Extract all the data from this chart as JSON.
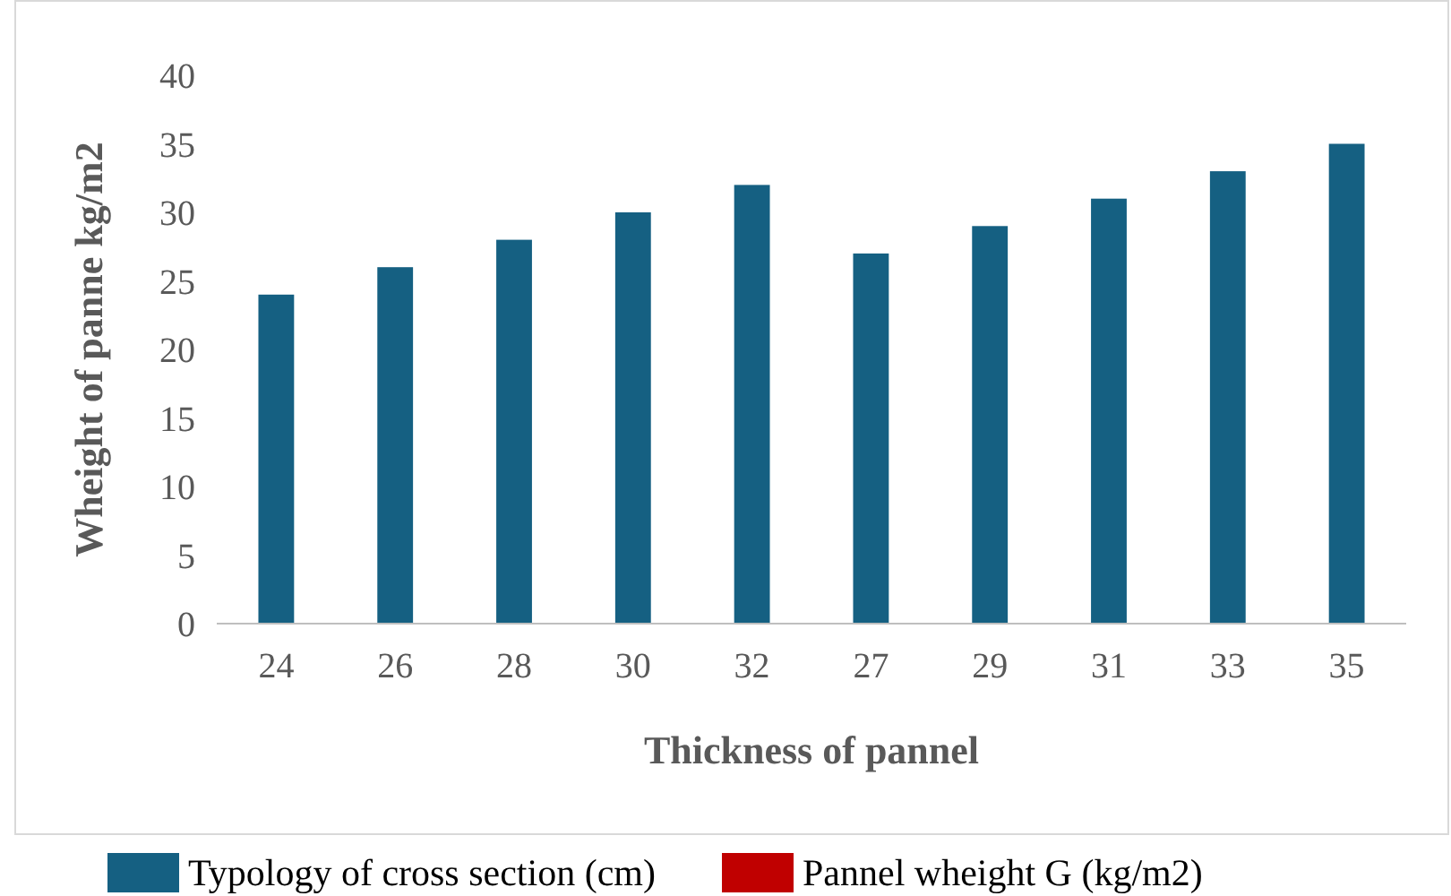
{
  "chart_data": {
    "type": "bar",
    "xlabel": "Thickness of pannel",
    "ylabel": "Wheight of panne kg/m2",
    "categories": [
      "24",
      "26",
      "28",
      "30",
      "32",
      "27",
      "29",
      "31",
      "33",
      "35"
    ],
    "series": [
      {
        "name": "Typology of cross section (cm)",
        "color": "#156082",
        "values": [
          24,
          26,
          28,
          30,
          32,
          27,
          29,
          31,
          33,
          35
        ]
      },
      {
        "name": "Pannel wheight G (kg/m2)",
        "color": "#c00000",
        "values": [
          null,
          null,
          null,
          null,
          null,
          null,
          null,
          null,
          null,
          null
        ]
      }
    ],
    "ylim": [
      0,
      40
    ],
    "yticks": [
      0,
      5,
      10,
      15,
      20,
      25,
      30,
      35,
      40
    ],
    "grid": false,
    "legend": "bottom"
  }
}
